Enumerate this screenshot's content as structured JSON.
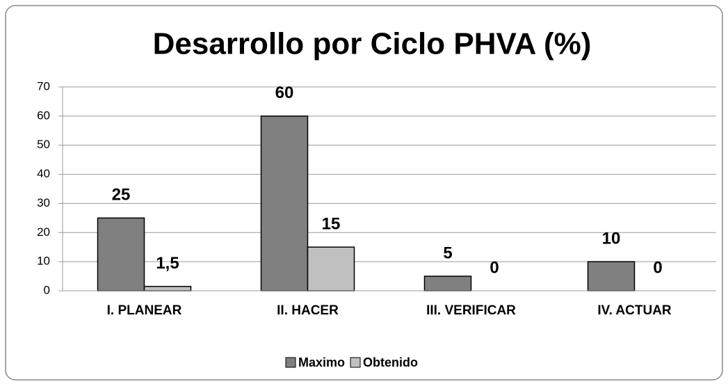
{
  "chart_data": {
    "type": "bar",
    "title": "Desarrollo por Ciclo PHVA (%)",
    "categories": [
      "I. PLANEAR",
      "II. HACER",
      "III. VERIFICAR",
      "IV. ACTUAR"
    ],
    "series": [
      {
        "name": "Maximo",
        "color": "#808080",
        "values": [
          25,
          60,
          5,
          10
        ]
      },
      {
        "name": "Obtenido",
        "color": "#c0c0c0",
        "values": [
          1.5,
          15,
          0,
          0
        ],
        "value_labels": [
          "1,5",
          "15",
          "0",
          "0"
        ]
      }
    ],
    "ylim": [
      0,
      70
    ],
    "yticks": [
      0,
      10,
      20,
      30,
      40,
      50,
      60,
      70
    ],
    "grid": true,
    "legend": "bottom"
  }
}
